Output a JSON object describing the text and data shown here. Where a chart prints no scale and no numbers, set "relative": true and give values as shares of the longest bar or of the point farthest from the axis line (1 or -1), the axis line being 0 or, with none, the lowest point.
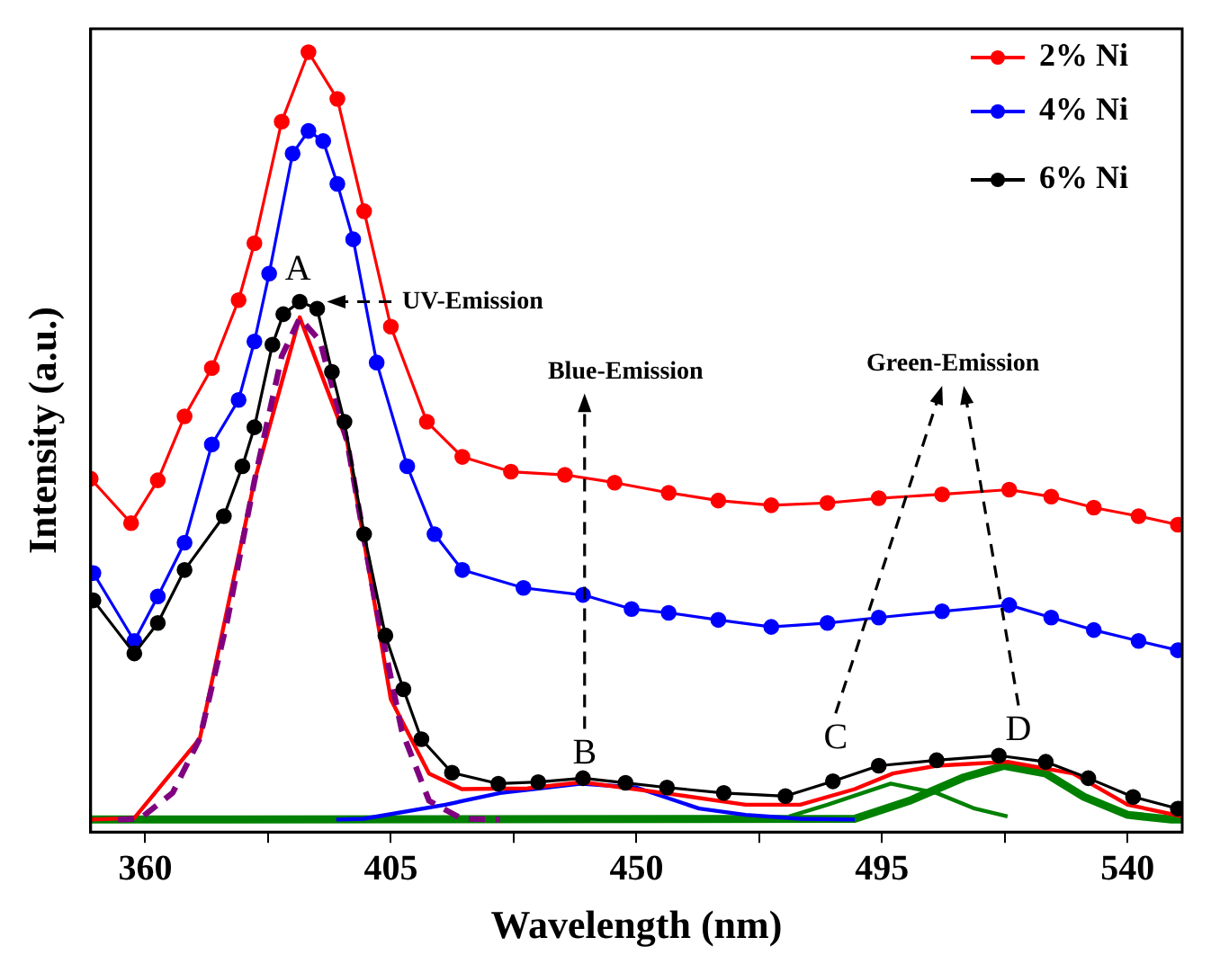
{
  "chart_data": {
    "type": "line",
    "relative": true,
    "xlabel": "Wavelength (nm)",
    "ylabel": "Intensity (a.u.)",
    "xlim": [
      350,
      550
    ],
    "xticks": [
      360,
      {
        "value": 382.5,
        "label": null
      },
      405,
      {
        "value": 427.5,
        "label": null
      },
      450,
      {
        "value": 472.5,
        "label": null
      },
      495,
      {
        "value": 517.5,
        "label": null
      },
      540
    ],
    "legend": "top right",
    "marker": "circle",
    "line_style": "solid",
    "series": [
      {
        "name": "2% Ni",
        "color": "#ff0000",
        "x": [
          350,
          357.4,
          362.3,
          367.2,
          372.2,
          377.1,
          380,
          385,
          389.9,
          395.2,
          400.1,
          405,
          411.6,
          418.1,
          427,
          436.9,
          446,
          455.9,
          465,
          474.7,
          485,
          494.4,
          506,
          518.3,
          526,
          533.8,
          542,
          549.2
        ],
        "values": [
          0.453,
          0.396,
          0.451,
          0.533,
          0.595,
          0.682,
          0.755,
          0.911,
          1,
          0.94,
          0.796,
          0.648,
          0.526,
          0.481,
          0.462,
          0.458,
          0.448,
          0.435,
          0.425,
          0.419,
          0.422,
          0.428,
          0.433,
          0.439,
          0.43,
          0.416,
          0.405,
          0.394
        ]
      },
      {
        "name": "4% Ni",
        "color": "#0000ff",
        "x": [
          350.5,
          358,
          362.3,
          367.2,
          372.2,
          377.1,
          380,
          382.7,
          387,
          389.9,
          392.6,
          395.2,
          398.1,
          402.4,
          408,
          413,
          418.1,
          429.3,
          440.2,
          449.1,
          455.9,
          465,
          474.7,
          485,
          494.4,
          506,
          518.3,
          526,
          533.8,
          542,
          549.2
        ],
        "values": [
          0.332,
          0.245,
          0.302,
          0.371,
          0.497,
          0.554,
          0.629,
          0.716,
          0.87,
          0.899,
          0.886,
          0.831,
          0.76,
          0.602,
          0.469,
          0.382,
          0.336,
          0.313,
          0.304,
          0.286,
          0.281,
          0.272,
          0.263,
          0.268,
          0.275,
          0.283,
          0.291,
          0.275,
          0.259,
          0.245,
          0.233
        ]
      },
      {
        "name": "6% Ni",
        "color": "#000000",
        "x": [
          350.5,
          358,
          362.3,
          367.2,
          374.4,
          377.8,
          380,
          383.3,
          385.3,
          388.3,
          391.5,
          394.2,
          396.5,
          400.1,
          404,
          407.3,
          410.6,
          416.2,
          424.7,
          432,
          440.2,
          448,
          455.6,
          466,
          477.3,
          486,
          494.4,
          505,
          516.4,
          525,
          532.8,
          541,
          549.2
        ],
        "values": [
          0.297,
          0.229,
          0.268,
          0.336,
          0.405,
          0.469,
          0.519,
          0.625,
          0.664,
          0.68,
          0.671,
          0.59,
          0.526,
          0.382,
          0.252,
          0.183,
          0.119,
          0.076,
          0.062,
          0.064,
          0.069,
          0.063,
          0.057,
          0.05,
          0.046,
          0.065,
          0.085,
          0.092,
          0.098,
          0.09,
          0.069,
          0.045,
          0.03
        ]
      },
      {
        "type": "line",
        "color": "#800080",
        "marker": "none",
        "line_style": "dashed",
        "x": [
          355,
          359,
          365,
          370,
          375,
          380,
          385,
          388.3,
          392,
          397,
          402,
          407,
          412,
          418,
          425
        ],
        "values": [
          0.016,
          0.017,
          0.05,
          0.12,
          0.27,
          0.45,
          0.61,
          0.659,
          0.63,
          0.5,
          0.3,
          0.13,
          0.04,
          0.017,
          0.016
        ]
      },
      {
        "type": "line",
        "color": "#ff0000",
        "marker": "none",
        "x": [
          350,
          358,
          370,
          380,
          388.3,
          397,
          405,
          412,
          418,
          430,
          440,
          455,
          470,
          480,
          490,
          497,
          505,
          518,
          530,
          540,
          550
        ],
        "values": [
          0.016,
          0.018,
          0.12,
          0.45,
          0.66,
          0.5,
          0.17,
          0.075,
          0.055,
          0.056,
          0.064,
          0.05,
          0.035,
          0.035,
          0.055,
          0.075,
          0.085,
          0.09,
          0.075,
          0.035,
          0.02
        ]
      },
      {
        "type": "line",
        "color": "#0000ff",
        "marker": "none",
        "x": [
          395,
          400,
          415,
          425,
          440,
          450,
          461.5,
          470,
          480,
          490
        ],
        "values": [
          0.016,
          0.017,
          0.035,
          0.05,
          0.062,
          0.057,
          0.03,
          0.022,
          0.017,
          0.016
        ]
      },
      {
        "type": "line",
        "color": "#008000",
        "marker": "none",
        "x": [
          478,
          485,
          496.6,
          505,
          512,
          518
        ],
        "values": [
          0.02,
          0.035,
          0.062,
          0.05,
          0.03,
          0.02
        ]
      },
      {
        "type": "line",
        "color": "#008000",
        "marker": "none",
        "x": [
          350,
          490,
          500,
          510,
          517.4,
          525,
          532,
          540,
          548,
          550
        ],
        "values": [
          0.016,
          0.017,
          0.04,
          0.07,
          0.085,
          0.075,
          0.045,
          0.022,
          0.016,
          0.016
        ]
      }
    ],
    "annotations": [
      "A",
      "B",
      "C",
      "D",
      "UV-Emission",
      "Blue-Emission",
      "Green-Emission"
    ]
  }
}
